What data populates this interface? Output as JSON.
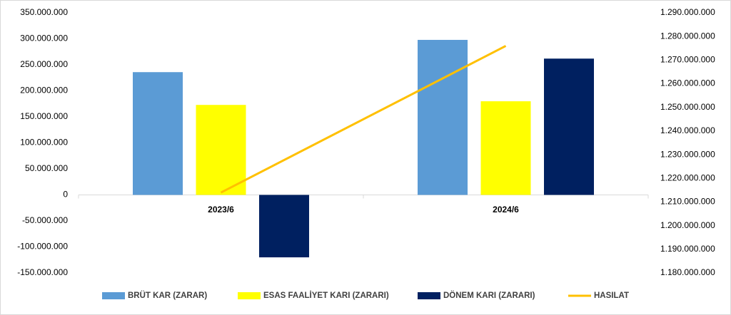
{
  "chart_data": {
    "type": "bar",
    "categories": [
      "2023/6",
      "2024/6"
    ],
    "series": [
      {
        "name": "BRÜT KAR (ZARAR)",
        "color": "#5b9bd5",
        "values": [
          236000000,
          298000000
        ]
      },
      {
        "name": "ESAS FAALİYET KARI (ZARARI)",
        "color": "#ffff00",
        "values": [
          173000000,
          180000000
        ]
      },
      {
        "name": "DÖNEM KARI (ZARARI)",
        "color": "#002060",
        "values": [
          -120000000,
          262000000
        ]
      },
      {
        "name": "HASILAT",
        "color": "#ffc000",
        "type": "line",
        "axis": "y2",
        "values": [
          1214000000,
          1276000000
        ]
      }
    ],
    "ylim": [
      -150000000,
      350000000
    ],
    "yticks": [
      {
        "value": -150000000,
        "label": "-150.000.000"
      },
      {
        "value": -100000000,
        "label": "-100.000.000"
      },
      {
        "value": -50000000,
        "label": "-50.000.000"
      },
      0,
      {
        "value": 50000000,
        "label": "50.000.000"
      },
      {
        "value": 100000000,
        "label": "100.000.000"
      },
      {
        "value": 150000000,
        "label": "150.000.000"
      },
      {
        "value": 200000000,
        "label": "200.000.000"
      },
      {
        "value": 250000000,
        "label": "250.000.000"
      },
      {
        "value": 300000000,
        "label": "300.000.000"
      },
      {
        "value": 350000000,
        "label": "350.000.000"
      }
    ],
    "y2lim": [
      1180000000,
      1290000000
    ],
    "y2ticks": [
      {
        "value": 1180000000,
        "label": "1.180.000.000"
      },
      {
        "value": 1190000000,
        "label": "1.190.000.000"
      },
      {
        "value": 1200000000,
        "label": "1.200.000.000"
      },
      {
        "value": 1210000000,
        "label": "1.210.000.000"
      },
      {
        "value": 1220000000,
        "label": "1.220.000.000"
      },
      {
        "value": 1230000000,
        "label": "1.230.000.000"
      },
      {
        "value": 1240000000,
        "label": "1.240.000.000"
      },
      {
        "value": 1250000000,
        "label": "1.250.000.000"
      },
      {
        "value": 1260000000,
        "label": "1.260.000.000"
      },
      {
        "value": 1270000000,
        "label": "1.270.000.000"
      },
      {
        "value": 1280000000,
        "label": "1.280.000.000"
      },
      {
        "value": 1290000000,
        "label": "1.290.000.000"
      }
    ],
    "grid": false,
    "legend": "bottom"
  }
}
